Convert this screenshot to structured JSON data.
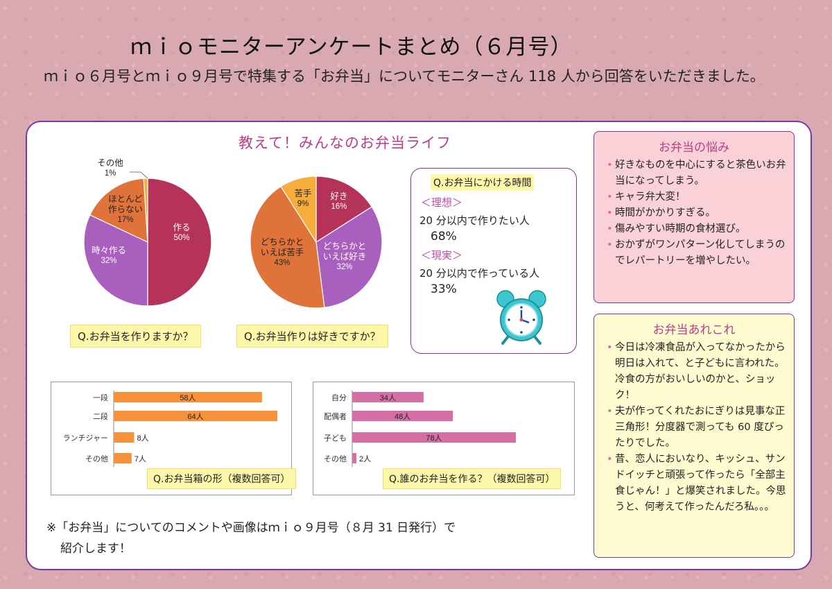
{
  "title": "ｍｉｏモニターアンケートまとめ（６月号）",
  "subtitle": "ｍｉｏ６月号とｍｉｏ９月号で特集する「お弁当」についてモニターさん 118 人から回答をいただきました。",
  "panel_heading": "教えて！みんなのお弁当ライフ",
  "chart_data": [
    {
      "type": "pie",
      "question": "Q.お弁当を作りますか？",
      "slices": [
        {
          "name": "作る",
          "value": 50,
          "label": "50%",
          "color": "#b5335a"
        },
        {
          "name": "時々作る",
          "value": 32,
          "label": "32%",
          "color": "#a85fbe"
        },
        {
          "name": "ほとんど作らない",
          "value": 17,
          "label": "17%",
          "color": "#e0733a"
        },
        {
          "name": "その他",
          "value": 1,
          "label": "1%",
          "color": "#f2ae3c"
        }
      ]
    },
    {
      "type": "pie",
      "question": "Q.お弁当作りは好きですか？",
      "slices": [
        {
          "name": "好き",
          "value": 16,
          "label": "16%",
          "color": "#b5335a"
        },
        {
          "name": "どちらかといえば好き",
          "value": 32,
          "label": "32%",
          "color": "#a85fbe"
        },
        {
          "name": "どちらかといえば苦手",
          "value": 43,
          "label": "43%",
          "color": "#e0733a"
        },
        {
          "name": "苦手",
          "value": 9,
          "label": "9%",
          "color": "#f7ad3c"
        }
      ]
    },
    {
      "type": "bar",
      "orientation": "horizontal",
      "question": "Q.お弁当箱の形（複数回答可）",
      "categories": [
        "一段",
        "二段",
        "ランチジャー",
        "その他"
      ],
      "values": [
        58,
        64,
        8,
        7
      ],
      "labels": [
        "58人",
        "64人",
        "8人",
        "7人"
      ],
      "color": "#f7923a"
    },
    {
      "type": "bar",
      "orientation": "horizontal",
      "question": "Q.誰のお弁当を作る？（複数回答可）",
      "categories": [
        "自分",
        "配偶者",
        "子ども",
        "その他"
      ],
      "values": [
        34,
        48,
        78,
        2
      ],
      "labels": [
        "34人",
        "48人",
        "78人",
        "2人"
      ],
      "color": "#d56ea4"
    }
  ],
  "time_box": {
    "question": "Q.お弁当にかける時間",
    "ideal_label": "＜理想＞",
    "ideal_text": "20 分以内で作りたい人",
    "ideal_pct": "68%",
    "real_label": "＜現実＞",
    "real_text": "20 分以内で作っている人",
    "real_pct": "33%"
  },
  "worries": {
    "title": "お弁当の悩み",
    "items": [
      "好きなものを中心にすると茶色いお弁当になってしまう。",
      "キャラ弁大変！",
      "時間がかかりすぎる。",
      "傷みやすい時期の食材選び。",
      "おかずがワンパターン化してしまうのでレパートリーを増やしたい。"
    ]
  },
  "misc": {
    "title": "お弁当あれこれ",
    "items": [
      "今日は冷凍食品が入ってなかったから明日は入れて、と子どもに言われた。冷食の方がおいしいのかと、ショック！",
      "夫が作ってくれたおにぎりは見事な正三角形！分度器で測っても 60 度ぴったりでした。",
      "昔、恋人においなり、キッシュ、サンドイッチと頑張って作ったら「全部主食じゃん！」と爆笑されました。今思うと、何考えて作ったんだろ私。。。"
    ]
  },
  "footnote": {
    "line1": "※「お弁当」についてのコメントや画像はｍｉｏ９月号（８月 31 日発行）で",
    "line2": "紹介します！"
  },
  "colors": {
    "accent_pink": "#b83e86",
    "frame_purple": "#7a3a9a",
    "highlight_yellow": "#fdf7a9"
  }
}
